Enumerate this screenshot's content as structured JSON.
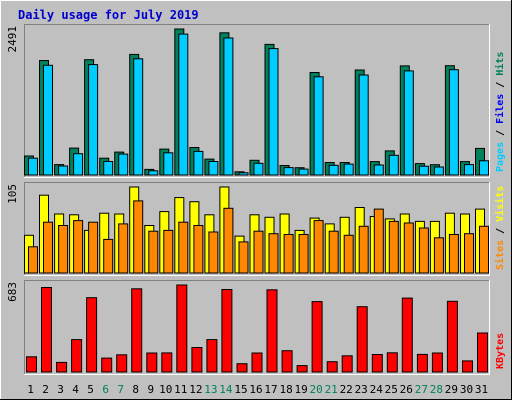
{
  "chart_data": {
    "type": "bar",
    "title": "Daily usage for July 2019",
    "days": [
      "1",
      "2",
      "3",
      "4",
      "5",
      "6",
      "7",
      "8",
      "9",
      "10",
      "11",
      "12",
      "13",
      "14",
      "15",
      "16",
      "17",
      "18",
      "19",
      "20",
      "21",
      "22",
      "23",
      "24",
      "25",
      "26",
      "27",
      "28",
      "29",
      "30",
      "31"
    ],
    "weekend_days": [
      "6",
      "7",
      "13",
      "14",
      "20",
      "21",
      "27",
      "28"
    ],
    "colors": {
      "title": "#0000cc",
      "background": "#c0c0c0",
      "hits": "#00805c",
      "files": "#00ccff",
      "pages": "#00ccff",
      "visits": "#ffff00",
      "sites": "#ff8800",
      "kbytes": "#ff0000",
      "weekday_label": "#000000",
      "weekend_label": "#00805c"
    },
    "panels": [
      {
        "id": "hits",
        "max_label": "2491",
        "max": 2491,
        "legend": [
          {
            "text": "Pages",
            "color": "#00ccff"
          },
          {
            "text": " / ",
            "color": "#000000"
          },
          {
            "text": "Files",
            "color": "#0000ff"
          },
          {
            "text": " / ",
            "color": "#000000"
          },
          {
            "text": "Hits",
            "color": "#00805c"
          }
        ],
        "series": [
          {
            "name": "Hits",
            "color": "#00805c",
            "values": [
              324,
              1953,
              178,
              459,
              1967,
              287,
              391,
              2058,
              96,
              442,
              2491,
              469,
              271,
              2426,
              55,
              250,
              2228,
              162,
              125,
              1748,
              213,
              213,
              1791,
              229,
              412,
              1861,
              195,
              176,
              1864,
              229,
              453
            ]
          },
          {
            "name": "Files",
            "color": "#00ccff",
            "values": [
              287,
              1872,
              153,
              363,
              1884,
              231,
              357,
              1983,
              71,
              379,
              2404,
              403,
              230,
              2337,
              38,
              199,
              2157,
              126,
              101,
              1675,
              166,
              186,
              1706,
              171,
              336,
              1776,
              150,
              136,
              1797,
              177,
              242
            ]
          }
        ]
      },
      {
        "id": "visits",
        "max_label": "105",
        "max": 105,
        "legend": [
          {
            "text": "Sites",
            "color": "#ff8800"
          },
          {
            "text": " / ",
            "color": "#000000"
          },
          {
            "text": "Visits",
            "color": "#ffff00"
          }
        ],
        "series": [
          {
            "name": "Visits",
            "color": "#ffff00",
            "values": [
              46,
              95,
              72,
              71,
              52,
              73,
              72,
              105,
              58,
              75,
              92,
              87,
              71,
              105,
              45,
              71,
              68,
              72,
              52,
              67,
              60,
              68,
              80,
              69,
              66,
              72,
              63,
              63,
              73,
              72,
              78
            ]
          },
          {
            "name": "Sites",
            "color": "#ff8800",
            "values": [
              32,
              62,
              58,
              64,
              62,
              41,
              60,
              88,
              51,
              52,
              62,
              58,
              50,
              79,
              38,
              51,
              48,
              47,
              47,
              64,
              51,
              46,
              57,
              78,
              63,
              61,
              55,
              43,
              47,
              48,
              57
            ]
          }
        ]
      },
      {
        "id": "kbytes",
        "max_label": "683",
        "max": 683,
        "legend": [
          {
            "text": "KBytes",
            "color": "#ff0000"
          }
        ],
        "series": [
          {
            "name": "KBytes",
            "color": "#ff0000",
            "values": [
              119,
              663,
              75,
              254,
              583,
              109,
              135,
              653,
              149,
              150,
              683,
              192,
              254,
              648,
              65,
              149,
              645,
              167,
              50,
              553,
              81,
              127,
              513,
              137,
              151,
              580,
              138,
              149,
              555,
              87,
              306
            ]
          }
        ]
      }
    ]
  }
}
